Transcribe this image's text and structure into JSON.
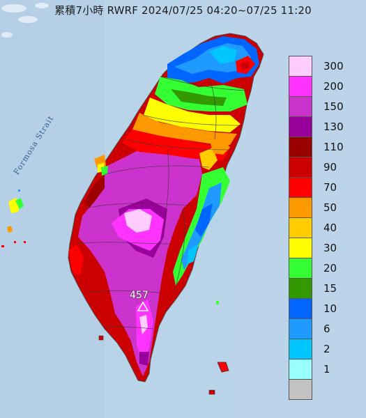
{
  "title": "累積7小時 RWRF 2024/07/25 04:20~07/25 11:20",
  "strait_label": "Formosa Strait",
  "peak_label": "457",
  "colors": {
    "sea": "#b9d3e8",
    "land": "#9fb9d0",
    "coast": "#6e7f8f"
  },
  "legend": {
    "items": [
      {
        "label": "300",
        "color": "#ffccff"
      },
      {
        "label": "200",
        "color": "#ff33ff"
      },
      {
        "label": "150",
        "color": "#cc33cc"
      },
      {
        "label": "130",
        "color": "#990099"
      },
      {
        "label": "110",
        "color": "#990000"
      },
      {
        "label": "90",
        "color": "#cc0000"
      },
      {
        "label": "70",
        "color": "#ff0000"
      },
      {
        "label": "50",
        "color": "#ff9900"
      },
      {
        "label": "40",
        "color": "#ffcc00"
      },
      {
        "label": "30",
        "color": "#ffff00"
      },
      {
        "label": "20",
        "color": "#33ff33"
      },
      {
        "label": "15",
        "color": "#339900"
      },
      {
        "label": "10",
        "color": "#0066ff"
      },
      {
        "label": "6",
        "color": "#1f9bff"
      },
      {
        "label": "2",
        "color": "#00c6ff"
      },
      {
        "label": "1",
        "color": "#99ffff"
      },
      {
        "label": "",
        "color": "#c2c2c2"
      }
    ]
  }
}
